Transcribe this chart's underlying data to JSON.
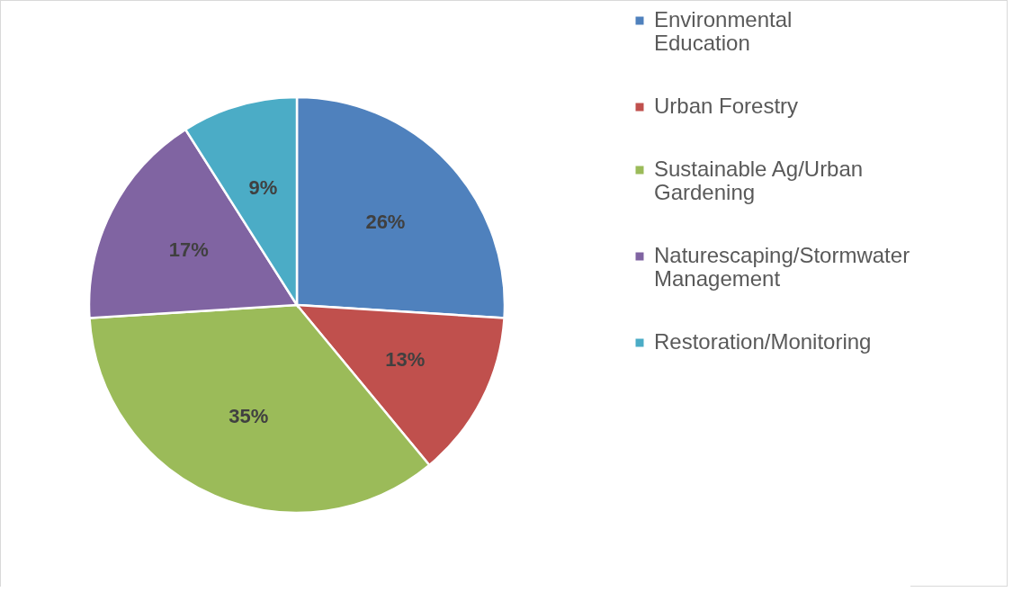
{
  "chart_data": {
    "type": "pie",
    "categories": [
      "Environmental Education",
      "Urban Forestry",
      "Sustainable Ag/Urban Gardening",
      "Naturescaping/Stormwater Management",
      "Restoration/Monitoring"
    ],
    "values": [
      26,
      13,
      35,
      17,
      9
    ],
    "value_labels": [
      "26%",
      "13%",
      "35%",
      "17%",
      "9%"
    ],
    "colors": [
      "#4f81bd",
      "#c0504d",
      "#9bbb59",
      "#8064a2",
      "#4bacc6"
    ],
    "legend": "right"
  }
}
